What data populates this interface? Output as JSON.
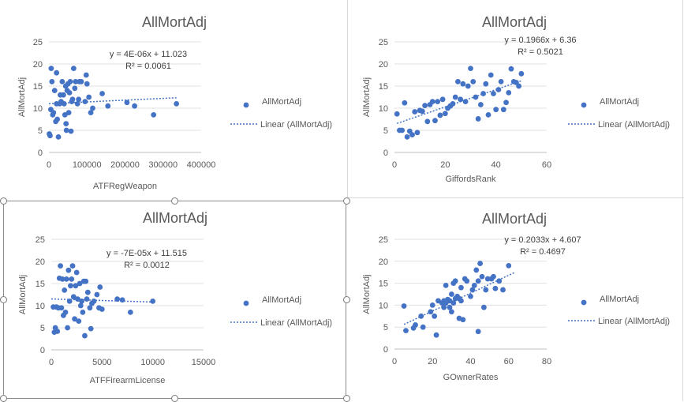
{
  "chart_data": [
    {
      "type": "scatter",
      "title": "AllMortAdj",
      "xlabel": "ATFRegWeapon",
      "ylabel": "AllMortAdj",
      "xlim": [
        0,
        400000
      ],
      "ylim": [
        0,
        25
      ],
      "xticks": [
        "0",
        "100000",
        "200000",
        "300000",
        "400000"
      ],
      "yticks": [
        "0",
        "5",
        "10",
        "15",
        "20",
        "25"
      ],
      "legend": {
        "position": "right",
        "entries": [
          "AllMortAdj",
          "Linear (AllMortAdj)"
        ]
      },
      "trendline": {
        "equation": "y = 4E-06x + 11.023",
        "r2": "R² = 0.0061",
        "slope": 4e-06,
        "intercept": 11.023,
        "x_range": [
          0,
          335000
        ]
      },
      "series": [
        {
          "name": "AllMortAdj",
          "color": "#4472C4",
          "points": [
            [
              1000,
              4.2
            ],
            [
              3000,
              3.8
            ],
            [
              5000,
              9.7
            ],
            [
              6000,
              19
            ],
            [
              8000,
              16
            ],
            [
              10000,
              8.5
            ],
            [
              12000,
              9
            ],
            [
              15000,
              14
            ],
            [
              18000,
              7
            ],
            [
              20000,
              18
            ],
            [
              20000,
              11
            ],
            [
              22000,
              7.5
            ],
            [
              25000,
              3.5
            ],
            [
              28000,
              11
            ],
            [
              30000,
              13
            ],
            [
              32000,
              11.5
            ],
            [
              35000,
              16
            ],
            [
              38000,
              13
            ],
            [
              40000,
              11
            ],
            [
              42000,
              8.5
            ],
            [
              44000,
              15
            ],
            [
              45000,
              6.5
            ],
            [
              46000,
              5
            ],
            [
              48000,
              14
            ],
            [
              50000,
              15.5
            ],
            [
              52000,
              9
            ],
            [
              54000,
              13.5
            ],
            [
              56000,
              16
            ],
            [
              58000,
              4.8
            ],
            [
              60000,
              11.5
            ],
            [
              62000,
              12
            ],
            [
              65000,
              19
            ],
            [
              68000,
              14.5
            ],
            [
              70000,
              16
            ],
            [
              75000,
              11
            ],
            [
              78000,
              12
            ],
            [
              80000,
              16
            ],
            [
              85000,
              16
            ],
            [
              95000,
              11.5
            ],
            [
              98000,
              17.5
            ],
            [
              100000,
              15.5
            ],
            [
              105000,
              12.5
            ],
            [
              110000,
              9
            ],
            [
              115000,
              10
            ],
            [
              140000,
              13.3
            ],
            [
              155000,
              10.5
            ],
            [
              205000,
              11.3
            ],
            [
              225000,
              10.5
            ],
            [
              275000,
              8.5
            ],
            [
              335000,
              11
            ]
          ]
        }
      ]
    },
    {
      "type": "scatter",
      "title": "AllMortAdj",
      "xlabel": "GiffordsRank",
      "ylabel": "AllMortAdj",
      "xlim": [
        0,
        60
      ],
      "ylim": [
        0,
        25
      ],
      "xticks": [
        "0",
        "20",
        "40",
        "60"
      ],
      "yticks": [
        "0",
        "5",
        "10",
        "15",
        "20",
        "25"
      ],
      "legend": {
        "position": "right",
        "entries": [
          "AllMortAdj",
          "Linear (AllMortAdj)"
        ]
      },
      "trendline": {
        "equation": "y = 0.1966x + 6.36",
        "r2": "R² = 0.5021",
        "slope": 0.1966,
        "intercept": 6.36,
        "x_range": [
          1,
          50
        ]
      },
      "series": [
        {
          "name": "AllMortAdj",
          "color": "#4472C4",
          "points": [
            [
              1,
              8.7
            ],
            [
              2,
              5
            ],
            [
              3,
              5
            ],
            [
              4,
              11.2
            ],
            [
              5,
              3.5
            ],
            [
              6,
              4.8
            ],
            [
              7,
              4
            ],
            [
              8,
              9.2
            ],
            [
              9,
              4.5
            ],
            [
              10,
              9.5
            ],
            [
              11,
              9.3
            ],
            [
              12,
              10.6
            ],
            [
              13,
              7
            ],
            [
              14,
              10.8
            ],
            [
              15,
              11.5
            ],
            [
              16,
              7.2
            ],
            [
              17,
              11.5
            ],
            [
              18,
              8.4
            ],
            [
              19,
              12
            ],
            [
              20,
              8.8
            ],
            [
              21,
              10
            ],
            [
              22,
              10.5
            ],
            [
              23,
              11
            ],
            [
              24,
              12.5
            ],
            [
              25,
              16
            ],
            [
              26,
              12
            ],
            [
              27,
              15.5
            ],
            [
              28,
              11.5
            ],
            [
              29,
              15
            ],
            [
              30,
              19
            ],
            [
              31,
              16
            ],
            [
              32,
              12.5
            ],
            [
              33,
              7.6
            ],
            [
              34,
              10.8
            ],
            [
              35,
              13.3
            ],
            [
              36,
              15.5
            ],
            [
              37,
              8.5
            ],
            [
              38,
              17.5
            ],
            [
              39,
              13.3
            ],
            [
              40,
              9.7
            ],
            [
              41,
              14.2
            ],
            [
              42,
              16
            ],
            [
              43,
              9.7
            ],
            [
              44,
              11.3
            ],
            [
              45,
              13.5
            ],
            [
              46,
              18.9
            ],
            [
              47,
              16
            ],
            [
              48,
              15.8
            ],
            [
              49,
              15
            ],
            [
              50,
              17.8
            ]
          ]
        }
      ]
    },
    {
      "type": "scatter",
      "title": "AllMortAdj",
      "xlabel": "ATFFirearmLicense",
      "ylabel": "AllMortAdj",
      "xlim": [
        0,
        15000
      ],
      "ylim": [
        0,
        25
      ],
      "xticks": [
        "0",
        "5000",
        "10000",
        "15000"
      ],
      "yticks": [
        "0",
        "5",
        "10",
        "15",
        "20",
        "25"
      ],
      "legend": {
        "position": "right",
        "entries": [
          "AllMortAdj",
          "Linear (AllMortAdj)"
        ]
      },
      "trendline": {
        "equation": "y = -7E-05x + 11.515",
        "r2": "R² = 0.0012",
        "slope": -7e-05,
        "intercept": 11.515,
        "x_range": [
          0,
          10000
        ]
      },
      "series": [
        {
          "name": "AllMortAdj",
          "color": "#4472C4",
          "points": [
            [
              200,
              9.7
            ],
            [
              300,
              4
            ],
            [
              400,
              5
            ],
            [
              500,
              9.7
            ],
            [
              600,
              4.2
            ],
            [
              700,
              9.5
            ],
            [
              800,
              16.2
            ],
            [
              900,
              19
            ],
            [
              1000,
              9.5
            ],
            [
              1100,
              16
            ],
            [
              1200,
              7.8
            ],
            [
              1300,
              13.5
            ],
            [
              1400,
              8.5
            ],
            [
              1500,
              16
            ],
            [
              1600,
              5
            ],
            [
              1700,
              18
            ],
            [
              1800,
              11
            ],
            [
              1900,
              14.5
            ],
            [
              2000,
              16
            ],
            [
              2100,
              19
            ],
            [
              2200,
              12
            ],
            [
              2300,
              7
            ],
            [
              2400,
              14.5
            ],
            [
              2500,
              17.5
            ],
            [
              2600,
              11.5
            ],
            [
              2700,
              6.5
            ],
            [
              2800,
              15
            ],
            [
              2900,
              10
            ],
            [
              3000,
              11
            ],
            [
              3100,
              8.5
            ],
            [
              3200,
              15.5
            ],
            [
              3300,
              3.2
            ],
            [
              3400,
              15.5
            ],
            [
              3500,
              11.5
            ],
            [
              3600,
              13
            ],
            [
              3800,
              9.5
            ],
            [
              3900,
              4.8
            ],
            [
              4000,
              10.5
            ],
            [
              4200,
              11
            ],
            [
              4500,
              12.5
            ],
            [
              4700,
              9.5
            ],
            [
              5000,
              9.2
            ],
            [
              4800,
              14.2
            ],
            [
              6500,
              11.5
            ],
            [
              7000,
              11.3
            ],
            [
              7800,
              8.5
            ],
            [
              10000,
              11
            ]
          ]
        }
      ]
    },
    {
      "type": "scatter",
      "title": "AllMortAdj",
      "xlabel": "GOwnerRates",
      "ylabel": "AllMortAdj",
      "xlim": [
        0,
        80
      ],
      "ylim": [
        0,
        25
      ],
      "xticks": [
        "0",
        "20",
        "40",
        "60",
        "80"
      ],
      "yticks": [
        "0",
        "5",
        "10",
        "15",
        "20",
        "25"
      ],
      "legend": {
        "position": "right",
        "entries": [
          "AllMortAdj",
          "Linear (AllMortAdj)"
        ]
      },
      "trendline": {
        "equation": "y = 0.2033x + 4.607",
        "r2": "R² = 0.4697",
        "slope": 0.2033,
        "intercept": 4.607,
        "x_range": [
          5,
          63
        ]
      },
      "series": [
        {
          "name": "AllMortAdj",
          "color": "#4472C4",
          "points": [
            [
              5,
              9.8
            ],
            [
              6,
              4.2
            ],
            [
              10,
              4.8
            ],
            [
              11,
              5.5
            ],
            [
              14,
              7.5
            ],
            [
              15,
              5
            ],
            [
              19,
              8.5
            ],
            [
              20,
              10
            ],
            [
              21,
              7.5
            ],
            [
              22,
              3.2
            ],
            [
              23,
              11
            ],
            [
              25,
              10.5
            ],
            [
              26,
              9.5
            ],
            [
              26,
              11
            ],
            [
              27,
              10.5
            ],
            [
              27,
              14.5
            ],
            [
              28,
              11.3
            ],
            [
              29,
              9.5
            ],
            [
              29,
              11
            ],
            [
              30,
              12.5
            ],
            [
              30,
              8.5
            ],
            [
              31,
              15
            ],
            [
              31,
              10.5
            ],
            [
              32,
              11.5
            ],
            [
              32,
              15.5
            ],
            [
              33,
              12
            ],
            [
              34,
              11.5
            ],
            [
              34,
              7
            ],
            [
              35,
              14
            ],
            [
              35,
              11
            ],
            [
              36,
              6.7
            ],
            [
              37,
              16
            ],
            [
              38,
              15.5
            ],
            [
              40,
              12
            ],
            [
              41,
              13.5
            ],
            [
              42,
              14.5
            ],
            [
              43,
              18
            ],
            [
              44,
              15.5
            ],
            [
              44,
              4
            ],
            [
              45,
              19.5
            ],
            [
              46,
              16.5
            ],
            [
              47,
              9.5
            ],
            [
              48,
              13.5
            ],
            [
              49,
              16
            ],
            [
              51,
              16
            ],
            [
              52,
              16.5
            ],
            [
              53,
              13.8
            ],
            [
              55,
              15.5
            ],
            [
              57,
              13.5
            ],
            [
              60,
              19
            ]
          ]
        }
      ]
    }
  ]
}
